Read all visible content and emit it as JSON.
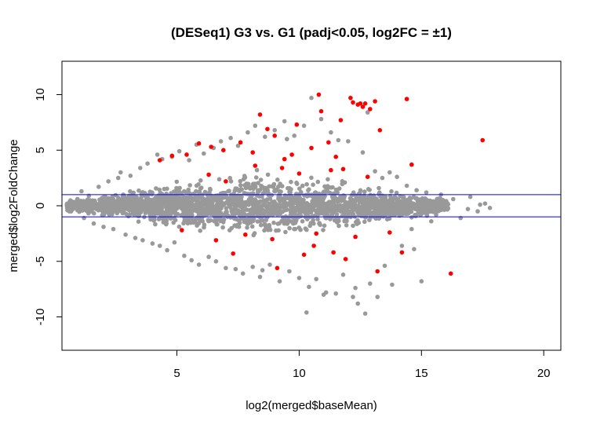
{
  "chart_data": {
    "type": "scatter",
    "title": "(DESeq1) G3 vs. G1 (padj<0.05, log2FC = ±1)",
    "xlabel": "log2(merged$baseMean)",
    "ylabel": "merged$log2FoldChange",
    "xlim": [
      0.3,
      20.7
    ],
    "ylim": [
      -13,
      13
    ],
    "xticks": [
      5,
      10,
      15,
      20
    ],
    "yticks": [
      -10,
      -5,
      0,
      5,
      10
    ],
    "grid": false,
    "legend": "none",
    "hlines": [
      {
        "y": 1,
        "color": "#0000ff"
      },
      {
        "y": -1,
        "color": "#0000ff"
      }
    ],
    "colors": {
      "nonsignificant": "#999999",
      "significant": "#ff0000",
      "threshold_lines": "#0000ff",
      "frame": "#000000"
    },
    "series": [
      {
        "key": "nonsignificant",
        "color": "#999999",
        "points": [
          [
            0.6,
            -0.5
          ],
          [
            0.9,
            0.4
          ],
          [
            1.1,
            1.3
          ],
          [
            1.2,
            -1.1
          ],
          [
            1.4,
            0.9
          ],
          [
            1.6,
            -1.6
          ],
          [
            1.8,
            1.7
          ],
          [
            2.0,
            -1.9
          ],
          [
            2.2,
            2.2
          ],
          [
            2.4,
            -2.1
          ],
          [
            2.6,
            2.5
          ],
          [
            2.7,
            3.0
          ],
          [
            2.9,
            -2.6
          ],
          [
            3.1,
            2.7
          ],
          [
            3.3,
            -2.9
          ],
          [
            3.5,
            3.4
          ],
          [
            3.6,
            -3.1
          ],
          [
            3.8,
            3.8
          ],
          [
            4.0,
            -3.4
          ],
          [
            4.2,
            4.6
          ],
          [
            4.3,
            -3.6
          ],
          [
            4.4,
            4.2
          ],
          [
            4.6,
            -4.0
          ],
          [
            4.8,
            4.4
          ],
          [
            4.9,
            -3.3
          ],
          [
            5.1,
            4.9
          ],
          [
            5.3,
            -4.5
          ],
          [
            5.5,
            4.1
          ],
          [
            5.6,
            -4.9
          ],
          [
            5.8,
            5.5
          ],
          [
            5.9,
            -5.3
          ],
          [
            6.1,
            4.7
          ],
          [
            6.3,
            -4.6
          ],
          [
            6.5,
            5.2
          ],
          [
            6.6,
            -5.0
          ],
          [
            6.8,
            5.8
          ],
          [
            7.0,
            -5.6
          ],
          [
            7.2,
            6.1
          ],
          [
            7.4,
            -5.7
          ],
          [
            7.5,
            5.4
          ],
          [
            7.7,
            -6.1
          ],
          [
            7.9,
            6.6
          ],
          [
            8.1,
            -5.5
          ],
          [
            8.2,
            7.2
          ],
          [
            8.4,
            -6.4
          ],
          [
            8.6,
            6.2
          ],
          [
            8.8,
            -5.3
          ],
          [
            9.0,
            6.8
          ],
          [
            9.2,
            -6.8
          ],
          [
            9.4,
            7.6
          ],
          [
            9.6,
            -5.9
          ],
          [
            9.8,
            6.3
          ],
          [
            10.0,
            -6.5
          ],
          [
            10.2,
            7.2
          ],
          [
            10.4,
            -7.3
          ],
          [
            10.5,
            9.7
          ],
          [
            10.7,
            -6.6
          ],
          [
            10.9,
            7.8
          ],
          [
            11.1,
            -7.8
          ],
          [
            11.3,
            6.6
          ],
          [
            11.5,
            -7.9
          ],
          [
            11.6,
            5.9
          ],
          [
            11.8,
            -6.2
          ],
          [
            12.0,
            5.8
          ],
          [
            12.2,
            -8.2
          ],
          [
            12.3,
            -7.4
          ],
          [
            12.4,
            -8.8
          ],
          [
            12.6,
            4.8
          ],
          [
            12.7,
            -9.7
          ],
          [
            12.8,
            8.4
          ],
          [
            12.9,
            -7.0
          ],
          [
            13.1,
            3.1
          ],
          [
            13.2,
            -8.2
          ],
          [
            13.4,
            2.5
          ],
          [
            13.5,
            -5.4
          ],
          [
            13.7,
            3.0
          ],
          [
            13.8,
            -7.1
          ],
          [
            14.0,
            2.6
          ],
          [
            14.2,
            -3.6
          ],
          [
            14.4,
            1.8
          ],
          [
            14.6,
            -2.1
          ],
          [
            14.8,
            1.4
          ],
          [
            15.0,
            -6.8
          ],
          [
            15.2,
            1.2
          ],
          [
            15.4,
            -1.4
          ],
          [
            15.6,
            -0.8
          ],
          [
            15.8,
            1.0
          ],
          [
            16.0,
            0.4
          ],
          [
            16.3,
            0.6
          ],
          [
            16.6,
            -1.1
          ],
          [
            17.0,
            0.8
          ],
          [
            17.3,
            -0.5
          ],
          [
            17.6,
            0.2
          ],
          [
            17.8,
            -0.2
          ],
          [
            10.3,
            -9.6
          ],
          [
            11.0,
            -8.0
          ],
          [
            8.5,
            -5.8
          ],
          [
            9.5,
            6.0
          ],
          [
            14.7,
            -3.9
          ],
          [
            16.9,
            -0.3
          ],
          [
            17.4,
            0.1
          ]
        ]
      },
      {
        "key": "significant",
        "color": "#ff0000",
        "points": [
          [
            4.3,
            4.1
          ],
          [
            4.8,
            4.5
          ],
          [
            5.4,
            4.6
          ],
          [
            5.9,
            5.6
          ],
          [
            6.4,
            5.3
          ],
          [
            6.9,
            5.0
          ],
          [
            7.3,
            -4.3
          ],
          [
            7.6,
            5.7
          ],
          [
            8.1,
            4.8
          ],
          [
            8.4,
            8.2
          ],
          [
            8.7,
            6.9
          ],
          [
            9.0,
            6.3
          ],
          [
            9.1,
            -5.6
          ],
          [
            9.4,
            4.2
          ],
          [
            9.7,
            4.6
          ],
          [
            9.9,
            7.3
          ],
          [
            10.2,
            -4.4
          ],
          [
            10.5,
            5.2
          ],
          [
            10.6,
            -3.6
          ],
          [
            10.8,
            10.0
          ],
          [
            10.9,
            8.5
          ],
          [
            11.2,
            5.7
          ],
          [
            11.4,
            -4.2
          ],
          [
            11.5,
            4.4
          ],
          [
            11.7,
            7.7
          ],
          [
            11.9,
            -4.8
          ],
          [
            12.1,
            9.7
          ],
          [
            12.2,
            9.3
          ],
          [
            12.4,
            9.1
          ],
          [
            12.5,
            9.2
          ],
          [
            12.6,
            8.9
          ],
          [
            12.7,
            9.2
          ],
          [
            12.9,
            8.7
          ],
          [
            13.1,
            9.4
          ],
          [
            13.2,
            -5.9
          ],
          [
            13.3,
            6.8
          ],
          [
            14.2,
            -4.2
          ],
          [
            14.4,
            9.6
          ],
          [
            14.6,
            3.7
          ],
          [
            16.2,
            -6.1
          ],
          [
            17.5,
            5.9
          ],
          [
            6.3,
            2.8
          ],
          [
            7.0,
            2.2
          ],
          [
            7.8,
            -2.6
          ],
          [
            8.9,
            -3.0
          ],
          [
            9.3,
            3.4
          ],
          [
            10.0,
            2.9
          ],
          [
            10.7,
            -2.5
          ],
          [
            11.3,
            3.2
          ],
          [
            12.3,
            -2.8
          ],
          [
            12.8,
            2.6
          ],
          [
            13.7,
            -2.4
          ],
          [
            5.2,
            -2.2
          ],
          [
            6.6,
            -3.1
          ],
          [
            8.2,
            3.6
          ],
          [
            11.8,
            3.3
          ]
        ]
      }
    ]
  }
}
